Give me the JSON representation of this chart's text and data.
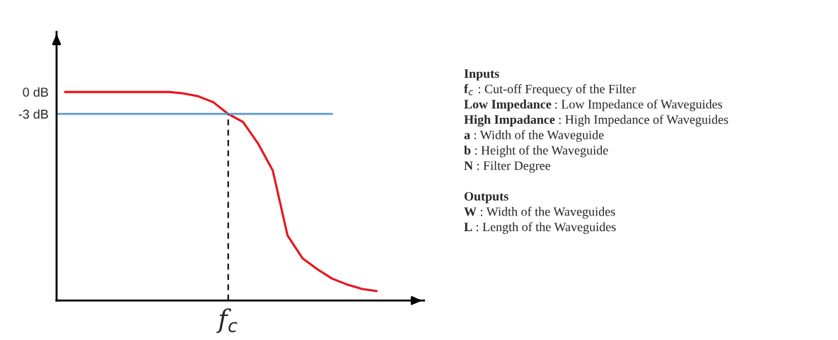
{
  "chart_data": {
    "type": "line",
    "categories": [
      null,
      null,
      null,
      null,
      null,
      null,
      null,
      null,
      null,
      null,
      null,
      "f$_{c}$",
      null,
      null,
      null,
      null,
      null,
      null,
      null,
      null,
      null,
      null
    ],
    "series": [
      {
        "color": "#e8141c",
        "values": [
          0,
          0,
          0,
          0,
          0,
          0,
          0,
          0,
          -0.2,
          -0.6,
          -1.4,
          -3,
          -4.1,
          -7.0,
          -10.7,
          -19.6,
          -22.7,
          -24.2,
          -25.5,
          -26.3,
          -26.9,
          -27.2
        ]
      }
    ],
    "ylim": [
      -28.5,
      8.2
    ],
    "yticks": [
      {
        "value": 0,
        "label": "0 dB"
      },
      {
        "value": -3,
        "label": "-3 dB"
      }
    ],
    "ref_lines": [
      {
        "axis": "y",
        "value": -3,
        "color": "#5b9bd5",
        "line_style": "solid"
      },
      {
        "axis": "x",
        "value": "f$_{c}$",
        "color": "#000000",
        "line_style": "dashed"
      }
    ],
    "annotations": [
      "Inputs",
      "f$_{c}$ : Cut-off Frequecy of the Filter",
      "Low Impedance : Low Impedance of Waveguides",
      "High Impadance : High Impedance of Waveguides",
      "a : Width of the Waveguide",
      "b : Height of the Waveguide",
      "N : Filter Degree",
      "Outputs",
      "W : Width of the Waveguides",
      "L : Length of the Waveguides"
    ],
    "grid": false,
    "legend": false
  }
}
